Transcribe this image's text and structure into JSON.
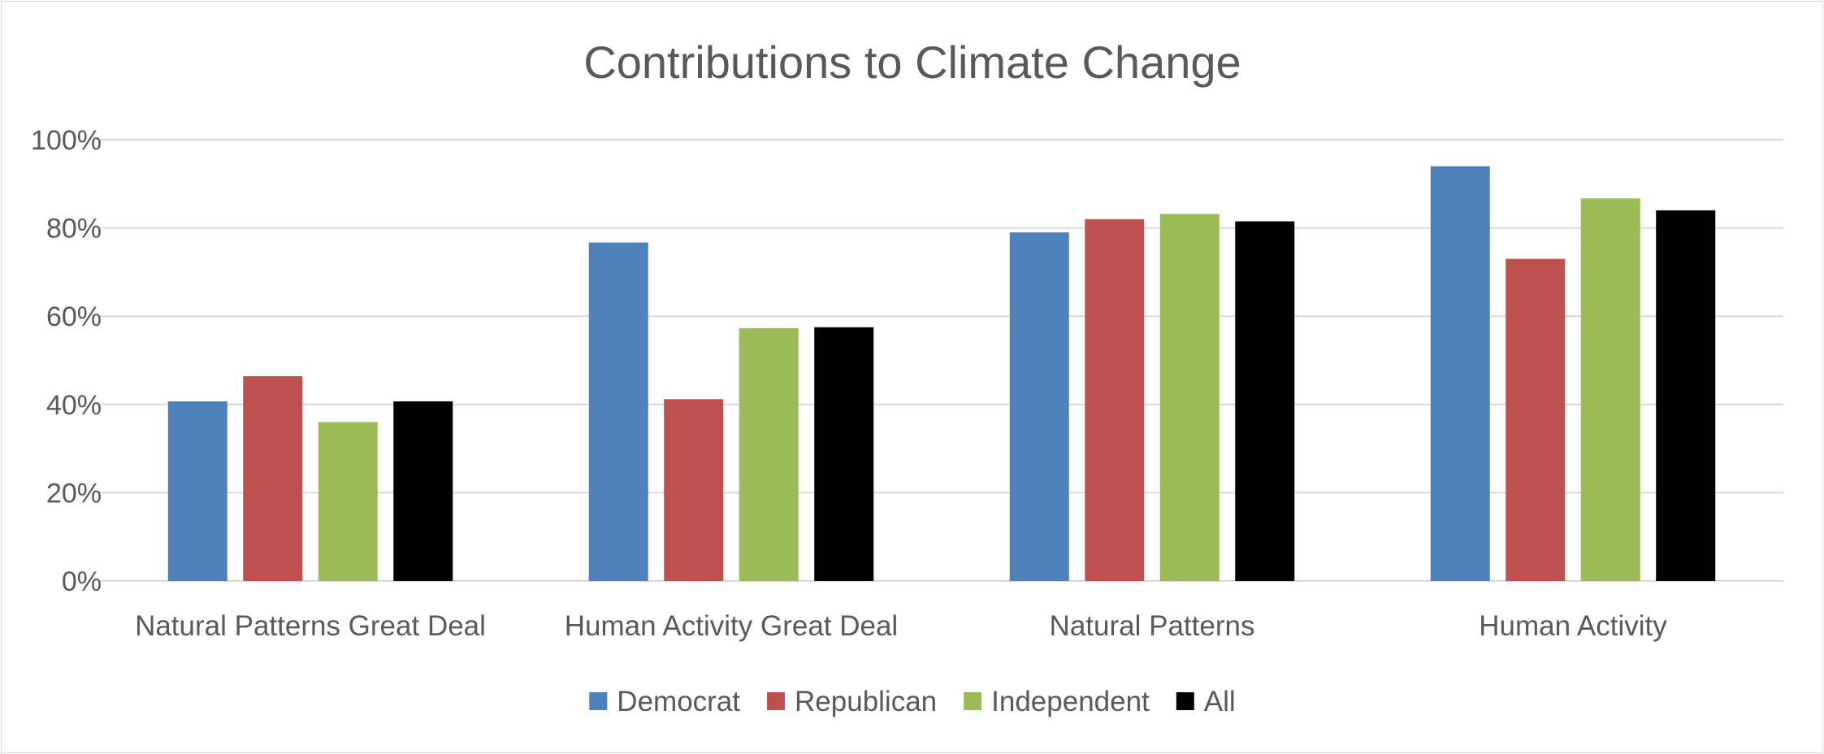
{
  "chart_data": {
    "type": "bar",
    "title": "Contributions to Climate Change",
    "xlabel": "",
    "ylabel": "",
    "categories": [
      "Natural Patterns Great Deal",
      "Human Activity Great Deal",
      "Natural Patterns",
      "Human Activity"
    ],
    "series": [
      {
        "name": "Democrat",
        "color": "#4f81bd",
        "values": [
          40.7,
          76.7,
          79.0,
          94.0
        ]
      },
      {
        "name": "Republican",
        "color": "#c0504d",
        "values": [
          46.4,
          41.2,
          82.0,
          73.0
        ]
      },
      {
        "name": "Independent",
        "color": "#9bbb59",
        "values": [
          36.0,
          57.3,
          83.2,
          86.7
        ]
      },
      {
        "name": "All",
        "color": "#000000",
        "values": [
          40.7,
          57.5,
          81.5,
          84.0
        ]
      }
    ],
    "ylim": [
      0,
      100
    ],
    "yticks": [
      0,
      20,
      40,
      60,
      80,
      100
    ],
    "ytick_labels": [
      "0%",
      "20%",
      "40%",
      "60%",
      "80%",
      "100%"
    ],
    "grid": true,
    "legend_position": "bottom"
  }
}
